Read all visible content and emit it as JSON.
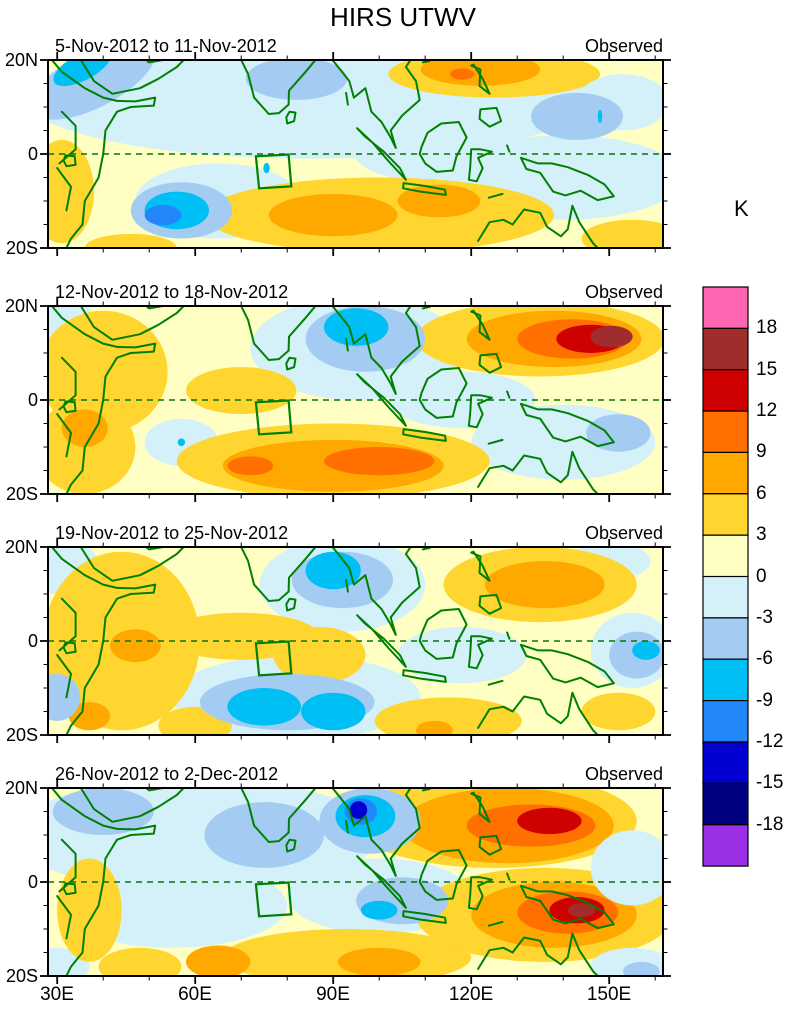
{
  "title": "HIRS UTWV",
  "colorbar": {
    "unit_label": "K",
    "tick_labels": [
      "18",
      "15",
      "12",
      "9",
      "6",
      "3",
      "0",
      "-3",
      "-6",
      "-9",
      "-12",
      "-15",
      "-18"
    ],
    "cell_colors_top_to_bottom": [
      "#FF66B2",
      "#A02C2C",
      "#CE0000",
      "#FF7000",
      "#FFA800",
      "#FFD530",
      "#FFFFC4",
      "#D4F1FA",
      "#A4CCF3",
      "#00BFF5",
      "#2287FB",
      "#0100D0",
      "#000080",
      "#9A2FE5"
    ]
  },
  "axes": {
    "x_tick_labels": [
      "30E",
      "60E",
      "90E",
      "120E",
      "150E"
    ],
    "y_tick_labels": [
      "20N",
      "0",
      "20S"
    ]
  },
  "chart_data": {
    "type": "heatmap",
    "title": "HIRS UTWV",
    "unit": "K",
    "contour_levels": [
      -18,
      -15,
      -12,
      -9,
      -6,
      -3,
      0,
      3,
      6,
      9,
      12,
      15,
      18
    ],
    "lon_range_deg_east": [
      28,
      162
    ],
    "lat_range_deg_north": [
      -20,
      20
    ],
    "grid": false,
    "legend_position": "right",
    "palette": {
      "18": "#FF66B2",
      "15": "#A02C2C",
      "12": "#CE0000",
      "9": "#FF7000",
      "6": "#FFA800",
      "3": "#FFD530",
      "0": "#FFFFC4",
      "-3": "#D4F1FA",
      "-6": "#A4CCF3",
      "-9": "#00BFF5",
      "-12": "#2287FB",
      "-15": "#0100D0",
      "-18": "#000080",
      "-21": "#9A2FE5"
    },
    "region_box_lon": [
      73.2,
      80.9
    ],
    "region_box_lat": [
      -7.2,
      -0.3
    ],
    "panels": [
      {
        "date_range": "5-Nov-2012 to 11-Nov-2012",
        "source": "Observed",
        "anomaly_features": [
          [
            -3,
            85,
            12,
            62,
            13,
            0
          ],
          [
            -3,
            112,
            1,
            18,
            7,
            0
          ],
          [
            -3,
            65,
            -10,
            18,
            8,
            0
          ],
          [
            -3,
            140,
            -5,
            26,
            9,
            0
          ],
          [
            3,
            31,
            -8,
            7,
            11,
            0
          ],
          [
            3,
            100,
            -13,
            38,
            8,
            0
          ],
          [
            3,
            46,
            -20,
            10,
            3,
            0
          ],
          [
            6,
            90,
            -13,
            14,
            4.5,
            0
          ],
          [
            6,
            113,
            -10,
            9,
            3.5,
            0
          ],
          [
            3,
            125,
            17,
            23,
            5,
            0
          ],
          [
            6,
            122,
            18,
            13,
            3.5,
            0
          ],
          [
            9,
            118,
            17,
            2.6,
            1.2,
            0
          ],
          [
            -3,
            153,
            11,
            10,
            6,
            0
          ],
          [
            3,
            155,
            -18,
            11,
            4,
            0
          ],
          [
            -6,
            38,
            16,
            15,
            6,
            -28
          ],
          [
            -9,
            35.5,
            18.5,
            7,
            2.8,
            -28
          ],
          [
            -6,
            82,
            16,
            11,
            4.5,
            0
          ],
          [
            -6,
            57,
            -12,
            11,
            6,
            0
          ],
          [
            -9,
            56,
            -12,
            7,
            4,
            0
          ],
          [
            -12,
            53,
            -13,
            4,
            2.2,
            0
          ],
          [
            -6,
            143,
            8,
            10,
            5,
            0
          ],
          [
            -9,
            75.5,
            -3,
            0.7,
            1.1,
            0
          ],
          [
            -9,
            148,
            8,
            0.5,
            1.4,
            0
          ]
        ]
      },
      {
        "date_range": "12-Nov-2012 to 18-Nov-2012",
        "source": "Observed",
        "anomaly_features": [
          [
            -3,
            95,
            11,
            23,
            11,
            0
          ],
          [
            -3,
            30,
            17,
            8,
            5,
            0
          ],
          [
            -3,
            118,
            0,
            16,
            6,
            0
          ],
          [
            -3,
            57,
            -9,
            8,
            5,
            0
          ],
          [
            -3,
            140,
            -9,
            20,
            8,
            0
          ],
          [
            3,
            40,
            6,
            14,
            13,
            0
          ],
          [
            3,
            36,
            -10,
            11,
            10,
            0
          ],
          [
            3,
            90,
            -13,
            34,
            8,
            0
          ],
          [
            3,
            70,
            2,
            12,
            5,
            0
          ],
          [
            6,
            36,
            -6,
            5,
            4,
            0
          ],
          [
            6,
            90,
            -14,
            24,
            5.5,
            0
          ],
          [
            9,
            100,
            -13,
            12,
            3,
            0
          ],
          [
            9,
            72,
            -14,
            5,
            2,
            0
          ],
          [
            3,
            135,
            13,
            27,
            8,
            0
          ],
          [
            6,
            138,
            13,
            19,
            6,
            0
          ],
          [
            9,
            142,
            13,
            12,
            4.2,
            0
          ],
          [
            12,
            146,
            13,
            7.5,
            3,
            0
          ],
          [
            15,
            150.5,
            13.5,
            4.6,
            2.3,
            0
          ],
          [
            -6,
            97,
            13,
            13,
            7,
            0
          ],
          [
            -9,
            95,
            15.5,
            7,
            4,
            0
          ],
          [
            -6,
            152,
            -7,
            7,
            4,
            0
          ],
          [
            -9,
            57,
            -9,
            0.8,
            0.8,
            0
          ]
        ]
      },
      {
        "date_range": "19-Nov-2012 to 25-Nov-2012",
        "source": "Observed",
        "anomaly_features": [
          [
            -3,
            92,
            12,
            18,
            10,
            0
          ],
          [
            -3,
            30,
            16,
            9,
            6,
            0
          ],
          [
            -3,
            82,
            -12,
            27,
            9,
            0
          ],
          [
            -3,
            118,
            -3,
            14,
            6,
            0
          ],
          [
            -3,
            150,
            17,
            9,
            4,
            0
          ],
          [
            -3,
            155,
            -2,
            9,
            8,
            0
          ],
          [
            3,
            44,
            0,
            17,
            19,
            0
          ],
          [
            6,
            47,
            -1,
            5.5,
            3.5,
            0
          ],
          [
            6,
            37,
            -16,
            4.5,
            3,
            0
          ],
          [
            3,
            70,
            1,
            17,
            5,
            0
          ],
          [
            3,
            87,
            -3,
            10,
            6,
            0
          ],
          [
            3,
            115,
            -17,
            16,
            5,
            0
          ],
          [
            6,
            112,
            -19,
            4,
            2,
            0
          ],
          [
            3,
            60,
            -18,
            8,
            4,
            0
          ],
          [
            3,
            152,
            -15,
            8,
            4,
            0
          ],
          [
            3,
            135,
            12,
            21,
            8,
            0
          ],
          [
            6,
            136,
            12,
            13,
            5,
            0
          ],
          [
            -6,
            92,
            13,
            11,
            6,
            0
          ],
          [
            -9,
            90,
            15,
            6,
            4,
            0
          ],
          [
            -6,
            30,
            -12,
            5,
            5,
            0
          ],
          [
            -6,
            80,
            -13,
            19,
            6,
            0
          ],
          [
            -9,
            75,
            -14,
            8,
            4,
            0
          ],
          [
            -9,
            90,
            -15,
            7,
            4,
            0
          ],
          [
            -6,
            156,
            -3,
            6,
            5,
            0
          ],
          [
            -9,
            158,
            -2,
            3,
            2,
            0
          ]
        ]
      },
      {
        "date_range": "26-Nov-2012 to 2-Dec-2012",
        "source": "Observed",
        "anomaly_features": [
          [
            -3,
            60,
            10,
            40,
            12,
            0
          ],
          [
            -3,
            55,
            -5,
            25,
            9,
            0
          ],
          [
            -3,
            100,
            -3,
            20,
            8,
            0
          ],
          [
            -3,
            30,
            -18,
            7,
            4,
            0
          ],
          [
            3,
            37,
            -6,
            7,
            11,
            0
          ],
          [
            3,
            48,
            -18,
            9,
            4,
            0
          ],
          [
            3,
            93,
            -16,
            27,
            6,
            0
          ],
          [
            6,
            65,
            -17,
            7,
            3.5,
            0
          ],
          [
            6,
            100,
            -17,
            9,
            3,
            0
          ],
          [
            3,
            125,
            13,
            31,
            10,
            0
          ],
          [
            6,
            128,
            12,
            23,
            8,
            0
          ],
          [
            9,
            133,
            12,
            14,
            4.5,
            0
          ],
          [
            12,
            137,
            13,
            7,
            2.8,
            0
          ],
          [
            3,
            136,
            -7,
            28,
            10,
            0
          ],
          [
            6,
            138,
            -7,
            18,
            7,
            0
          ],
          [
            9,
            141,
            -6.5,
            11,
            4.5,
            0
          ],
          [
            12,
            143,
            -6,
            6,
            2.8,
            0
          ],
          [
            15,
            144,
            -6,
            3,
            1.5,
            0
          ],
          [
            -3,
            155,
            3,
            9,
            8,
            0
          ],
          [
            -3,
            155,
            -18,
            9,
            4,
            0
          ],
          [
            -6,
            157,
            -19,
            4,
            2,
            0
          ],
          [
            -6,
            40,
            15,
            11,
            5,
            0
          ],
          [
            -6,
            75,
            10,
            13,
            7,
            0
          ],
          [
            -6,
            98,
            13,
            11,
            7,
            0
          ],
          [
            -9,
            97,
            14,
            6.5,
            4.5,
            0
          ],
          [
            -12,
            96,
            15,
            3.5,
            2.8,
            0
          ],
          [
            -15,
            95.5,
            15.3,
            1.9,
            1.9,
            0
          ],
          [
            -6,
            105,
            -4,
            10,
            5,
            0
          ],
          [
            -9,
            100,
            -6,
            4,
            2,
            0
          ]
        ]
      }
    ]
  }
}
